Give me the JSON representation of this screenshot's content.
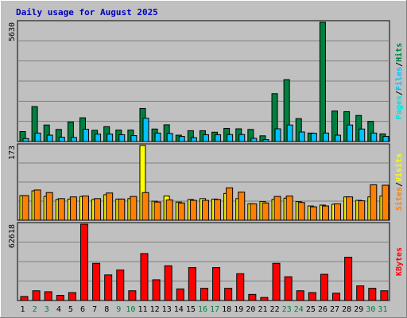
{
  "header": {
    "title": "Daily usage for August 2025"
  },
  "colors": {
    "page_bg": "#c0c0c0",
    "title": "#0000c0",
    "hits": "#008040",
    "files": "#00c0ff",
    "pages": "#00e0e0",
    "visits": "#ffff00",
    "sites": "#ff8000",
    "kbytes": "#ff0000",
    "weekend_day": "#008040",
    "weekday_day": "#000000"
  },
  "chart_data": [
    {
      "type": "bar",
      "panel": "hits-files-pages",
      "max_label": "5630",
      "ylim": [
        0,
        5630
      ],
      "legend": [
        "Pages",
        "/",
        "Files",
        "/",
        "Hits"
      ],
      "categories": [
        "1",
        "2",
        "3",
        "4",
        "5",
        "6",
        "7",
        "8",
        "9",
        "10",
        "11",
        "12",
        "13",
        "14",
        "15",
        "16",
        "17",
        "18",
        "19",
        "20",
        "21",
        "22",
        "23",
        "24",
        "25",
        "26",
        "27",
        "28",
        "29",
        "30",
        "31"
      ],
      "series": [
        {
          "name": "Hits",
          "values": [
            470,
            1650,
            780,
            570,
            920,
            1120,
            530,
            700,
            540,
            540,
            1560,
            590,
            790,
            300,
            510,
            510,
            440,
            620,
            600,
            570,
            270,
            2260,
            2920,
            1080,
            400,
            5630,
            1440,
            1410,
            1230,
            950,
            360
          ]
        },
        {
          "name": "Files",
          "values": [
            140,
            400,
            300,
            200,
            190,
            580,
            350,
            350,
            320,
            280,
            1100,
            400,
            380,
            240,
            180,
            320,
            320,
            330,
            330,
            150,
            90,
            600,
            780,
            450,
            390,
            400,
            300,
            780,
            590,
            400,
            240
          ]
        }
      ]
    },
    {
      "type": "bar",
      "panel": "visits-sites",
      "max_label": "173",
      "ylim": [
        0,
        173
      ],
      "legend": [
        "Sites",
        "/",
        "Visits"
      ],
      "categories": [
        "1",
        "2",
        "3",
        "4",
        "5",
        "6",
        "7",
        "8",
        "9",
        "10",
        "11",
        "12",
        "13",
        "14",
        "15",
        "16",
        "17",
        "18",
        "19",
        "20",
        "21",
        "22",
        "23",
        "24",
        "25",
        "26",
        "27",
        "28",
        "29",
        "30",
        "31"
      ],
      "series": [
        {
          "name": "Visits",
          "values": [
            57,
            68,
            55,
            48,
            49,
            55,
            48,
            59,
            49,
            50,
            173,
            44,
            56,
            42,
            48,
            50,
            49,
            62,
            50,
            38,
            43,
            48,
            51,
            43,
            33,
            35,
            37,
            54,
            46,
            54,
            56
          ]
        },
        {
          "name": "Sites",
          "values": [
            57,
            70,
            64,
            50,
            54,
            56,
            50,
            63,
            49,
            55,
            64,
            42,
            47,
            40,
            46,
            46,
            48,
            75,
            65,
            38,
            40,
            55,
            56,
            41,
            31,
            33,
            38,
            54,
            45,
            82,
            81
          ]
        }
      ]
    },
    {
      "type": "bar",
      "panel": "kbytes",
      "max_label": "62618",
      "ylim": [
        0,
        62618
      ],
      "legend": [
        "KBytes"
      ],
      "categories": [
        "1",
        "2",
        "3",
        "4",
        "5",
        "6",
        "7",
        "8",
        "9",
        "10",
        "11",
        "12",
        "13",
        "14",
        "15",
        "16",
        "17",
        "18",
        "19",
        "20",
        "21",
        "22",
        "23",
        "24",
        "25",
        "26",
        "27",
        "28",
        "29",
        "30",
        "31"
      ],
      "series": [
        {
          "name": "KBytes",
          "values": [
            3300,
            8000,
            7200,
            4200,
            6500,
            62618,
            30500,
            21000,
            25000,
            8000,
            38500,
            17000,
            28500,
            9500,
            27000,
            10000,
            27000,
            10000,
            22000,
            5000,
            2500,
            30500,
            19500,
            8000,
            6500,
            21500,
            6000,
            35500,
            12000,
            10000,
            8000
          ]
        }
      ]
    }
  ],
  "x_axis": {
    "labels": [
      "1",
      "2",
      "3",
      "4",
      "5",
      "6",
      "7",
      "8",
      "9",
      "10",
      "11",
      "12",
      "13",
      "14",
      "15",
      "16",
      "17",
      "18",
      "19",
      "20",
      "21",
      "22",
      "23",
      "24",
      "25",
      "26",
      "27",
      "28",
      "29",
      "30",
      "31"
    ],
    "weekend_days": [
      "2",
      "3",
      "9",
      "10",
      "16",
      "17",
      "23",
      "24",
      "30",
      "31"
    ]
  }
}
